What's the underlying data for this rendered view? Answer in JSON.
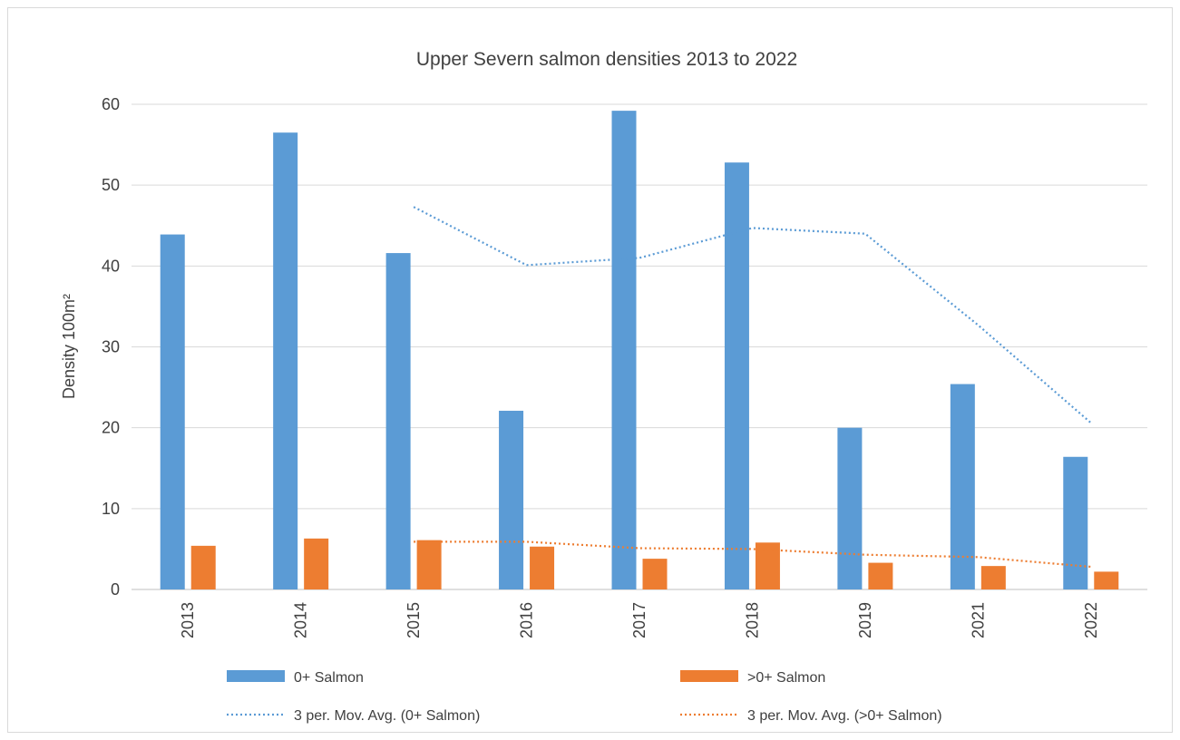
{
  "chart_data": {
    "type": "bar",
    "title": "Upper Severn salmon densities 2013 to 2022",
    "xlabel": "",
    "ylabel": "Density 100m²",
    "ylim": [
      0,
      60
    ],
    "yticks": [
      0,
      10,
      20,
      30,
      40,
      50,
      60
    ],
    "grid": true,
    "legend_position": "bottom",
    "categories": [
      "2013",
      "2014",
      "2015",
      "2016",
      "2017",
      "2018",
      "2019",
      "2021",
      "2022"
    ],
    "series": [
      {
        "name": "0+ Salmon",
        "type": "bar",
        "color": "#5b9bd5",
        "values": [
          43.9,
          56.5,
          41.6,
          22.1,
          59.2,
          52.8,
          20.0,
          25.4,
          16.4
        ]
      },
      {
        "name": ">0+ Salmon",
        "type": "bar",
        "color": "#ed7d31",
        "values": [
          5.4,
          6.3,
          6.1,
          5.3,
          3.8,
          5.8,
          3.3,
          2.9,
          2.2
        ]
      },
      {
        "name": "3 per. Mov. Avg. (0+ Salmon)",
        "type": "line",
        "style": "dotted",
        "color": "#5b9bd5",
        "values": [
          null,
          null,
          47.3,
          40.1,
          41.0,
          44.7,
          44.0,
          32.7,
          20.6
        ]
      },
      {
        "name": "3 per. Mov. Avg. (>0+ Salmon)",
        "type": "line",
        "style": "dotted",
        "color": "#ed7d31",
        "values": [
          null,
          null,
          5.9,
          5.9,
          5.1,
          5.0,
          4.3,
          4.0,
          2.8
        ]
      }
    ]
  }
}
